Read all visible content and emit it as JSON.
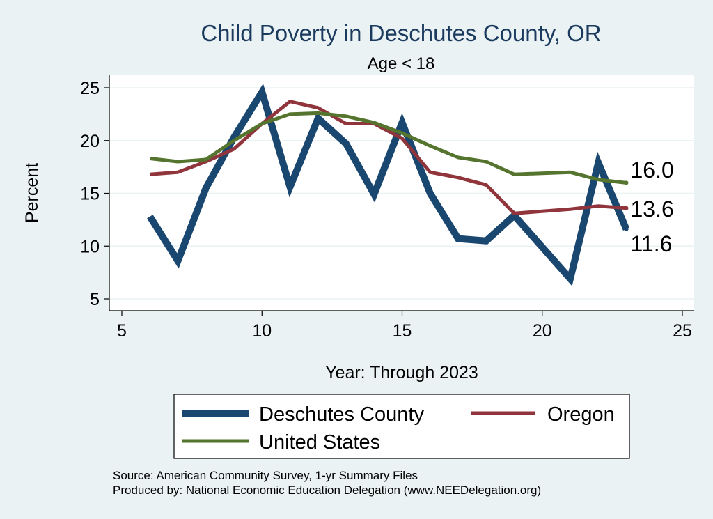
{
  "chart_data": {
    "type": "line",
    "title": "Child Poverty in Deschutes County, OR",
    "subtitle": "Age < 18",
    "xlabel": "Year: Through 2023",
    "ylabel": "Percent",
    "xlim": [
      5,
      25
    ],
    "ylim": [
      5,
      25
    ],
    "xticks": [
      5,
      10,
      15,
      20,
      25
    ],
    "yticks": [
      5,
      10,
      15,
      20,
      25
    ],
    "grid": true,
    "legend_position": "bottom",
    "series": [
      {
        "name": "Deschutes County",
        "color": "#1a476f",
        "x": [
          6,
          7,
          8,
          9,
          10,
          11,
          12,
          13,
          14,
          15,
          16,
          17,
          18,
          19,
          21,
          22,
          23
        ],
        "y": [
          12.8,
          8.6,
          15.5,
          20.3,
          24.6,
          15.6,
          22.1,
          19.7,
          14.9,
          21.7,
          15.0,
          10.7,
          10.5,
          12.9,
          6.9,
          17.9,
          11.6
        ],
        "end_label": "11.6"
      },
      {
        "name": "Oregon",
        "color": "#90353b",
        "x": [
          6,
          7,
          8,
          9,
          10,
          11,
          12,
          13,
          14,
          15,
          16,
          17,
          18,
          19,
          21,
          22,
          23
        ],
        "y": [
          16.8,
          17.0,
          18.0,
          19.2,
          21.6,
          23.7,
          23.1,
          21.6,
          21.6,
          20.2,
          17.0,
          16.5,
          15.8,
          13.1,
          13.5,
          13.8,
          13.6
        ],
        "end_label": "13.6"
      },
      {
        "name": "United States",
        "color": "#55752f",
        "x": [
          6,
          7,
          8,
          9,
          10,
          11,
          12,
          13,
          14,
          15,
          16,
          17,
          18,
          19,
          21,
          22,
          23
        ],
        "y": [
          18.3,
          18.0,
          18.2,
          20.0,
          21.6,
          22.5,
          22.6,
          22.3,
          21.7,
          20.7,
          19.5,
          18.4,
          18.0,
          16.8,
          17.0,
          16.3,
          16.0
        ],
        "end_label": "16.0"
      }
    ]
  },
  "source": {
    "line1": "Source: American Community Survey, 1-yr Summary Files",
    "line2": "Produced by: National Economic Education Delegation (www.NEEDelegation.org)"
  }
}
